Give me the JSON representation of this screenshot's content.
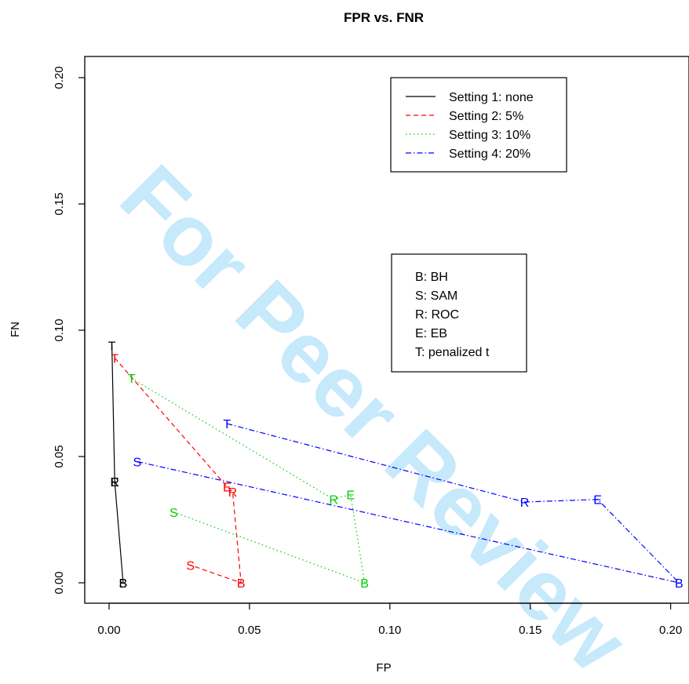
{
  "chart_data": {
    "type": "line",
    "title": "FPR vs. FNR",
    "xlabel": "FP",
    "ylabel": "FN",
    "xlim": [
      -0.008,
      0.207
    ],
    "ylim": [
      -0.008,
      0.2045
    ],
    "x_ticks": [
      "0.00",
      "0.05",
      "0.10",
      "0.15",
      "0.20"
    ],
    "x_tick_values": [
      0.0,
      0.05,
      0.1,
      0.15,
      0.2
    ],
    "y_ticks": [
      "0.00",
      "0.05",
      "0.10",
      "0.15",
      "0.20"
    ],
    "y_tick_values": [
      0.0,
      0.05,
      0.1,
      0.15,
      0.2
    ],
    "grid": false,
    "legend_position": "top-right",
    "series": [
      {
        "name": "Setting 1: none",
        "color": "#000000",
        "line_style": "solid",
        "points": [
          {
            "label": "T",
            "x": 0.001,
            "y": 0.094
          },
          {
            "label": "E",
            "x": 0.002,
            "y": 0.04
          },
          {
            "label": "R",
            "x": 0.002,
            "y": 0.04
          },
          {
            "label": "B",
            "x": 0.005,
            "y": 0.0
          },
          {
            "label": "S",
            "x": 0.005,
            "y": 0.0
          }
        ]
      },
      {
        "name": "Setting 2: 5%",
        "color": "#ff0000",
        "line_style": "dashed",
        "points": [
          {
            "label": "T",
            "x": 0.002,
            "y": 0.089
          },
          {
            "label": "E",
            "x": 0.042,
            "y": 0.038
          },
          {
            "label": "R",
            "x": 0.044,
            "y": 0.036
          },
          {
            "label": "B",
            "x": 0.047,
            "y": 0.0
          },
          {
            "label": "S",
            "x": 0.029,
            "y": 0.007
          }
        ]
      },
      {
        "name": "Setting 3: 10%",
        "color": "#00cd00",
        "line_style": "dotted",
        "points": [
          {
            "label": "T",
            "x": 0.008,
            "y": 0.081
          },
          {
            "label": "R",
            "x": 0.08,
            "y": 0.033
          },
          {
            "label": "E",
            "x": 0.086,
            "y": 0.035
          },
          {
            "label": "B",
            "x": 0.091,
            "y": 0.0
          },
          {
            "label": "S",
            "x": 0.023,
            "y": 0.028
          }
        ]
      },
      {
        "name": "Setting 4: 20%",
        "color": "#0000ff",
        "line_style": "dashdot",
        "points": [
          {
            "label": "T",
            "x": 0.042,
            "y": 0.063
          },
          {
            "label": "R",
            "x": 0.148,
            "y": 0.032
          },
          {
            "label": "E",
            "x": 0.174,
            "y": 0.033
          },
          {
            "label": "B",
            "x": 0.203,
            "y": 0.0
          },
          {
            "label": "S",
            "x": 0.01,
            "y": 0.048
          }
        ]
      }
    ],
    "key_entries": [
      "B: BH",
      "S: SAM",
      "R: ROC",
      "E: EB",
      "T: penalized t"
    ],
    "watermark": "For Peer Review"
  }
}
